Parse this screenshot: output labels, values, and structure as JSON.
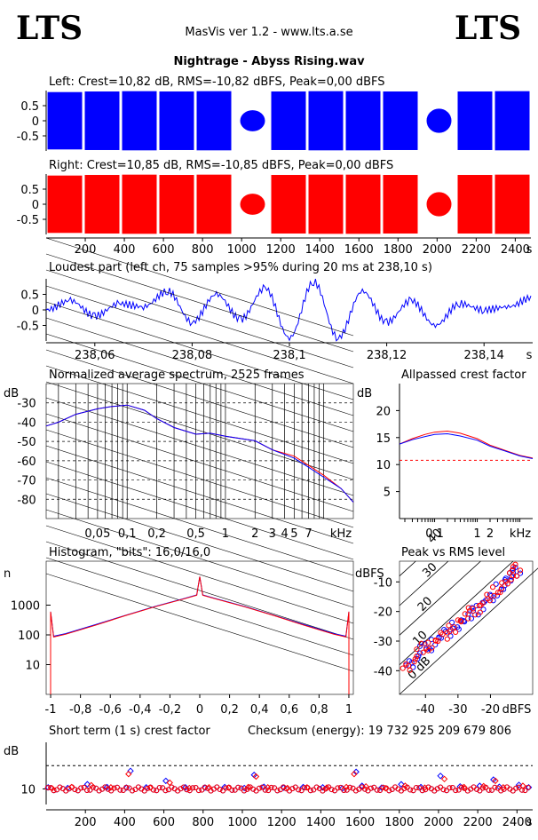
{
  "header": {
    "logo_left": "LTS",
    "logo_right": "LTS",
    "app_title": "MasVis ver 1.2 - www.lts.a.se",
    "file_name": "Nightrage - Abyss Rising.wav"
  },
  "colors": {
    "left": "#0000ff",
    "right": "#ff0000",
    "grid": "#000000"
  },
  "chart_data": [
    {
      "id": "left-waveform",
      "type": "area",
      "title": "Left: Crest=10,82 dB, RMS=-10,82 dBFS, Peak=0,00 dBFS",
      "ytick_labels": [
        "0.5",
        "0",
        "-0.5"
      ],
      "yticks": [
        0.5,
        0,
        -0.5
      ],
      "ylim": [
        -1,
        1
      ],
      "xlim": [
        0,
        2480
      ],
      "series": [
        {
          "values": [
            0.95,
            0.97,
            0.98,
            0.97,
            0.98,
            0.35,
            0.97,
            0.98,
            0.98,
            0.97,
            0.4,
            0.97,
            0.98
          ]
        }
      ]
    },
    {
      "id": "right-waveform",
      "type": "area",
      "title": "Right: Crest=10,85 dB, RMS=-10,85 dBFS, Peak=0,00 dBFS",
      "ytick_labels": [
        "0.5",
        "0",
        "-0.5"
      ],
      "yticks": [
        0.5,
        0,
        -0.5
      ],
      "ylim": [
        -1,
        1
      ],
      "xlim": [
        0,
        2480
      ],
      "xtick_labels": [
        "200",
        "400",
        "600",
        "800",
        "1000",
        "1200",
        "1400",
        "1600",
        "1800",
        "2000",
        "2200",
        "2400"
      ],
      "xunit": "s",
      "series": [
        {
          "values": [
            0.95,
            0.97,
            0.98,
            0.97,
            0.98,
            0.35,
            0.97,
            0.98,
            0.98,
            0.97,
            0.4,
            0.97,
            0.98
          ]
        }
      ]
    },
    {
      "id": "loudest-part",
      "type": "line",
      "title": "Loudest part (left  ch, 75 samples >95% during 20 ms at 238,10 s)",
      "ytick_labels": [
        "0.5",
        "0",
        "-0.5"
      ],
      "yticks": [
        0.5,
        0,
        -0.5
      ],
      "ylim": [
        -1,
        1
      ],
      "xtick_labels": [
        "238,06",
        "238,08",
        "238,1",
        "238,12",
        "238,14"
      ],
      "xticks": [
        238.06,
        238.08,
        238.1,
        238.12,
        238.14
      ],
      "xlim": [
        238.05,
        238.15
      ],
      "xunit": "s",
      "series": [
        {
          "x": [
            238.05,
            238.055,
            238.06,
            238.065,
            238.07,
            238.075,
            238.08,
            238.085,
            238.09,
            238.095,
            238.1,
            238.105,
            238.11,
            238.115,
            238.12,
            238.125,
            238.13,
            238.135,
            238.14,
            238.145,
            238.15
          ],
          "y": [
            0.0,
            0.3,
            -0.2,
            0.2,
            0.1,
            0.6,
            -0.4,
            0.5,
            -0.3,
            0.7,
            -0.9,
            0.9,
            -0.9,
            0.6,
            -0.4,
            0.3,
            -0.5,
            0.2,
            0.0,
            0.1,
            0.4
          ]
        }
      ]
    },
    {
      "id": "avg-spectrum",
      "type": "line",
      "title": "Normalized average spectrum, 2525 frames",
      "ylabel": "dB",
      "ytick_labels": [
        "-30",
        "-40",
        "-50",
        "-60",
        "-70",
        "-80"
      ],
      "yticks": [
        -30,
        -40,
        -50,
        -60,
        -70,
        -80
      ],
      "ylim": [
        -90,
        -20
      ],
      "xtick_labels": [
        "0,05",
        "0,1",
        "0,2",
        "0,5",
        "1",
        "2",
        "3",
        "4",
        "5",
        "7",
        "kHz"
      ],
      "xticks": [
        0.05,
        0.1,
        0.2,
        0.5,
        1,
        2,
        3,
        4,
        5,
        7
      ],
      "xlim": [
        0.015,
        20
      ],
      "xscale": "log",
      "series": [
        {
          "name": "",
          "color": "#ff0000",
          "x": [
            0.015,
            0.02,
            0.03,
            0.05,
            0.07,
            0.1,
            0.15,
            0.2,
            0.3,
            0.5,
            0.7,
            1,
            2,
            3,
            5,
            7,
            10,
            15,
            20
          ],
          "y": [
            -42,
            -40,
            -36,
            -33,
            -32,
            -31,
            -34,
            -38,
            -43,
            -46,
            -46,
            -47,
            -50,
            -54,
            -58,
            -62,
            -68,
            -74,
            -82
          ]
        },
        {
          "name": "",
          "color": "#0000ff",
          "x": [
            0.015,
            0.02,
            0.03,
            0.05,
            0.07,
            0.1,
            0.15,
            0.2,
            0.3,
            0.5,
            0.7,
            1,
            2,
            3,
            5,
            7,
            10,
            15,
            20
          ],
          "y": [
            -42,
            -40,
            -36,
            -33,
            -32,
            -31,
            -34,
            -38,
            -43,
            -46,
            -46,
            -47,
            -50,
            -54,
            -59,
            -63,
            -69,
            -74,
            -82
          ]
        }
      ]
    },
    {
      "id": "allpassed-crest",
      "type": "line",
      "title": "Allpassed crest factor",
      "ylabel": "dB",
      "ytick_labels": [
        "20",
        "15",
        "10",
        "5"
      ],
      "yticks": [
        20,
        15,
        10,
        5
      ],
      "ylim": [
        0,
        25
      ],
      "xtick_labels": [
        "0,1",
        "1",
        "2",
        "kHz"
      ],
      "xticks": [
        0.1,
        1,
        2
      ],
      "xlim": [
        0.015,
        20
      ],
      "xscale": "log",
      "reference_line": 10.8,
      "series": [
        {
          "name": "",
          "color": "#ff0000",
          "x": [
            0.015,
            0.03,
            0.06,
            0.1,
            0.2,
            0.4,
            1,
            2,
            5,
            10,
            20
          ],
          "y": [
            13.8,
            14.8,
            15.6,
            16.0,
            16.2,
            15.8,
            14.8,
            13.6,
            12.5,
            11.7,
            11.2
          ]
        },
        {
          "name": "",
          "color": "#0000ff",
          "x": [
            0.015,
            0.03,
            0.06,
            0.1,
            0.2,
            0.4,
            1,
            2,
            5,
            10,
            20
          ],
          "y": [
            13.8,
            14.6,
            15.2,
            15.6,
            15.7,
            15.3,
            14.5,
            13.4,
            12.4,
            11.6,
            11.1
          ]
        }
      ]
    },
    {
      "id": "histogram",
      "type": "line",
      "title": "Histogram, \"bits\": 16,0/16,0",
      "ylabel": "n",
      "ytick_labels": [
        "1000",
        "100",
        "10"
      ],
      "yticks": [
        1000,
        100,
        10
      ],
      "ylim": [
        1,
        30000
      ],
      "yscale": "log",
      "xtick_labels": [
        "-1",
        "-0,8",
        "-0,6",
        "-0,4",
        "-0,2",
        "0",
        "0,2",
        "0,4",
        "0,6",
        "0,8",
        "1"
      ],
      "xticks": [
        -1,
        -0.8,
        -0.6,
        -0.4,
        -0.2,
        0,
        0.2,
        0.4,
        0.6,
        0.8,
        1
      ],
      "xlim": [
        -1.03,
        1.03
      ],
      "series": [
        {
          "color": "#0000ff",
          "x": [
            -1,
            -0.98,
            -0.9,
            -0.7,
            -0.5,
            -0.3,
            -0.1,
            -0.02,
            0,
            0.02,
            0.1,
            0.3,
            0.5,
            0.7,
            0.9,
            0.98,
            1
          ],
          "y": [
            600,
            90,
            110,
            220,
            450,
            900,
            1700,
            2200,
            9000,
            2200,
            1700,
            900,
            450,
            220,
            110,
            90,
            600
          ]
        },
        {
          "color": "#ff0000",
          "x": [
            -1,
            -0.98,
            -0.9,
            -0.7,
            -0.5,
            -0.3,
            -0.1,
            -0.02,
            0,
            0.02,
            0.1,
            0.3,
            0.5,
            0.7,
            0.9,
            0.98,
            1
          ],
          "y": [
            600,
            85,
            105,
            210,
            440,
            880,
            1650,
            2150,
            9000,
            2150,
            1650,
            880,
            440,
            210,
            105,
            85,
            600
          ]
        }
      ]
    },
    {
      "id": "peak-vs-rms",
      "type": "scatter",
      "title": "Peak vs RMS level",
      "ylabel": "dBFS",
      "ytick_labels": [
        "-10",
        "-20",
        "-30",
        "-40"
      ],
      "yticks": [
        -10,
        -20,
        -30,
        -40
      ],
      "ylim": [
        -48,
        -3
      ],
      "xtick_labels": [
        "-40",
        "-30",
        "-20",
        "dBFS"
      ],
      "xticks": [
        -40,
        -30,
        -20
      ],
      "xlim": [
        -48,
        -7
      ],
      "diagonal_labels": [
        "40",
        "30",
        "20",
        "10",
        "0 dB"
      ],
      "series": [
        {
          "color": "#0000ff",
          "x": [
            -45,
            -43,
            -41,
            -39,
            -37,
            -35,
            -33,
            -31,
            -29,
            -27,
            -25,
            -23,
            -21,
            -19,
            -17,
            -15,
            -14,
            -13,
            -12
          ],
          "y": [
            -38,
            -36,
            -33,
            -32,
            -30,
            -28,
            -27,
            -25,
            -24,
            -22,
            -20,
            -18,
            -16,
            -15,
            -12,
            -10,
            -8,
            -7,
            -6
          ]
        },
        {
          "color": "#ff0000",
          "x": [
            -46,
            -44,
            -42,
            -40,
            -38,
            -36,
            -34,
            -32,
            -30,
            -28,
            -26,
            -24,
            -22,
            -20,
            -18,
            -16,
            -14,
            -13,
            -12
          ],
          "y": [
            -39,
            -37,
            -34,
            -32,
            -31,
            -29,
            -28,
            -26,
            -24,
            -22,
            -20,
            -19,
            -17,
            -15,
            -13,
            -11,
            -9,
            -7,
            -5
          ]
        }
      ]
    },
    {
      "id": "short-term-crest",
      "type": "scatter",
      "title": "Short term (1 s) crest factor",
      "checksum": "Checksum (energy):  19 732 925 209 679 806",
      "ylabel": "dB",
      "ytick_labels": [
        "10"
      ],
      "yticks": [
        10
      ],
      "ylim": [
        5,
        25
      ],
      "reference_line": 17.5,
      "xtick_labels": [
        "200",
        "400",
        "600",
        "800",
        "1000",
        "1200",
        "1400",
        "1600",
        "1800",
        "2000",
        "2200",
        "2400"
      ],
      "xlim": [
        0,
        2480
      ],
      "xunit": "s",
      "series": [
        {
          "color": "#0000ff",
          "x": [
            10,
            110,
            210,
            310,
            410,
            430,
            510,
            610,
            710,
            810,
            910,
            1010,
            1060,
            1110,
            1210,
            1310,
            1410,
            1510,
            1580,
            1610,
            1710,
            1810,
            1910,
            2010,
            2110,
            2210,
            2280,
            2310,
            2410,
            2460
          ],
          "y": [
            10.5,
            10.3,
            11.5,
            10.6,
            10.4,
            15.8,
            10.5,
            12.6,
            10.5,
            10.4,
            10.6,
            10.3,
            14.5,
            10.7,
            10.4,
            10.6,
            10.5,
            10.2,
            15.5,
            11.0,
            10.4,
            11.5,
            10.6,
            14.2,
            10.8,
            11.0,
            13.0,
            10.7,
            11.3,
            10.5
          ]
        },
        {
          "color": "#ff0000",
          "x": [
            30,
            130,
            230,
            330,
            420,
            530,
            630,
            730,
            830,
            930,
            1030,
            1070,
            1130,
            1230,
            1330,
            1430,
            1530,
            1570,
            1630,
            1730,
            1830,
            1930,
            2030,
            2130,
            2230,
            2290,
            2330,
            2430
          ],
          "y": [
            10.2,
            10.6,
            11.2,
            10.5,
            14.8,
            10.4,
            12.0,
            10.3,
            10.5,
            10.4,
            10.6,
            14.0,
            10.5,
            10.3,
            10.5,
            10.4,
            10.6,
            14.8,
            10.8,
            10.2,
            11.0,
            10.4,
            13.2,
            10.6,
            10.9,
            12.6,
            10.5,
            11.0
          ]
        }
      ]
    }
  ]
}
